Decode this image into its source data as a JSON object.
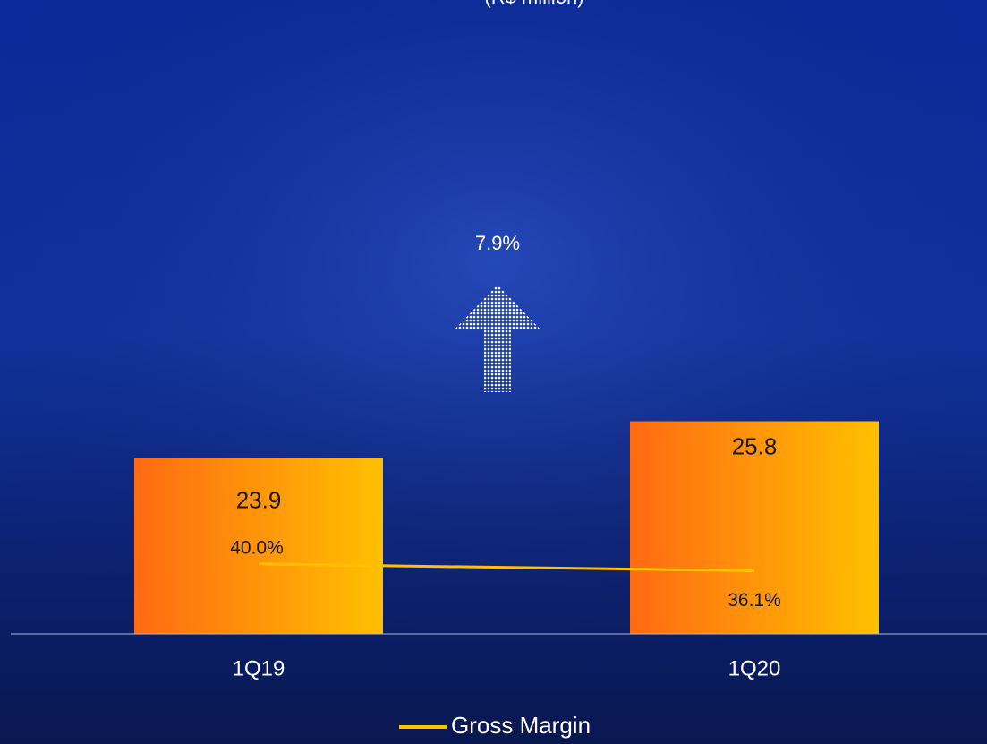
{
  "chart_data": {
    "type": "bar",
    "title": "(R$ million)",
    "categories": [
      "1Q19",
      "1Q20"
    ],
    "series": [
      {
        "type": "bar",
        "values": [
          23.9,
          25.8
        ],
        "color": "#ffc000"
      },
      {
        "type": "line",
        "name": "Gross Margin",
        "axis": "y2",
        "values": [
          40.0,
          36.1
        ],
        "value_labels": [
          "40.0%",
          "36.1%"
        ],
        "color": "#ffc000"
      }
    ],
    "annotation": "7.9%",
    "ylim": [
      14.8,
      45
    ],
    "y2lim": [
      0,
      334
    ],
    "legend": "bottom",
    "grid": false
  }
}
